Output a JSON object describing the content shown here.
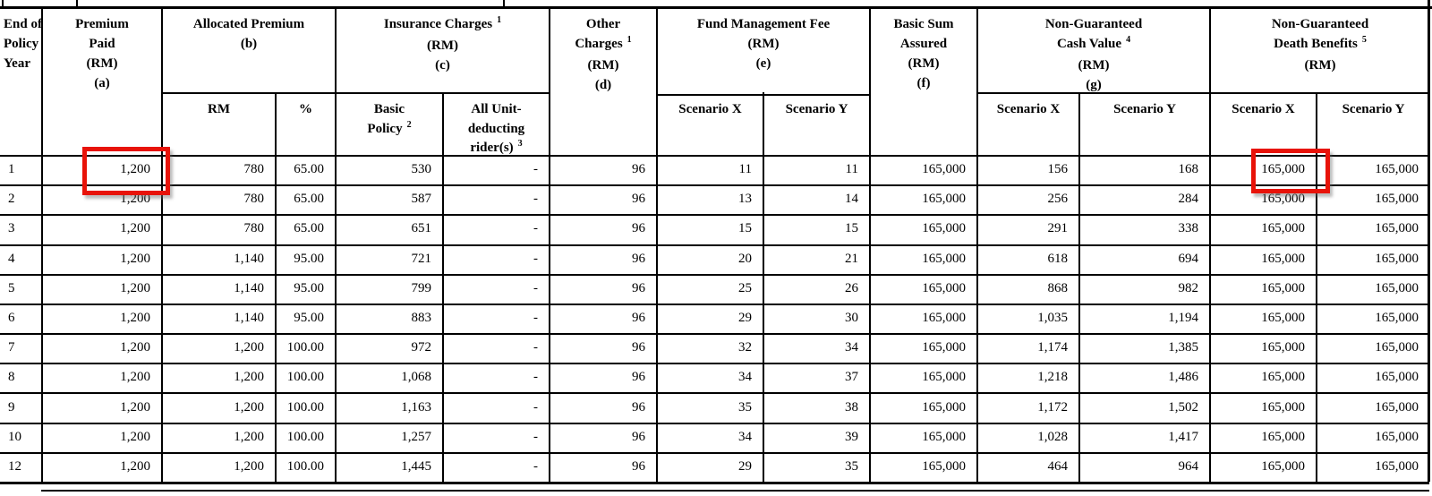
{
  "document": {
    "type": "insurance-benefit-illustration-table",
    "currency_note": "RM"
  },
  "colors": {
    "highlight_red": "#e81309",
    "grid": "#000000",
    "background": "#ffffff"
  },
  "header": {
    "policy_year": {
      "lines": [
        {
          "t": "End of"
        },
        {
          "t": "Policy"
        },
        {
          "t": "Year"
        }
      ]
    },
    "premium_paid": {
      "lines": [
        {
          "t": "Premium"
        },
        {
          "t": "Paid"
        },
        {
          "t": "(RM)"
        },
        {
          "t": "(a)"
        }
      ]
    },
    "allocated": {
      "lines": [
        {
          "t": "Allocated Premium"
        },
        {
          "t": "(b)"
        }
      ]
    },
    "insurance": {
      "lines": [
        {
          "t": "Insurance Charges",
          "s": "1"
        },
        {
          "t": "(RM)"
        },
        {
          "t": "(c)"
        }
      ]
    },
    "other": {
      "lines": [
        {
          "t": "Other"
        },
        {
          "t": "Charges",
          "s": "1"
        },
        {
          "t": "(RM)"
        },
        {
          "t": "(d)"
        }
      ]
    },
    "fmf": {
      "lines": [
        {
          "t": "Fund Management Fee"
        },
        {
          "t": "(RM)"
        },
        {
          "t": "(e)"
        }
      ]
    },
    "bsa": {
      "lines": [
        {
          "t": "Basic Sum"
        },
        {
          "t": "Assured"
        },
        {
          "t": "(RM)"
        },
        {
          "t": "(f)"
        }
      ]
    },
    "ngcv": {
      "lines": [
        {
          "t": "Non-Guaranteed"
        },
        {
          "t": "Cash Value",
          "s": "4"
        },
        {
          "t": "(RM)"
        },
        {
          "t": "(g)"
        }
      ]
    },
    "ngdb": {
      "lines": [
        {
          "t": "Non-Guaranteed"
        },
        {
          "t": "Death Benefits",
          "s": "5"
        },
        {
          "t": "(RM)"
        }
      ]
    }
  },
  "subheader": {
    "alloc_rm": {
      "lines": [
        {
          "t": "RM"
        }
      ]
    },
    "alloc_pct": {
      "lines": [
        {
          "t": "%"
        }
      ]
    },
    "basic_policy": {
      "lines": [
        {
          "t": "Basic"
        },
        {
          "t": "Policy",
          "s": "2"
        }
      ]
    },
    "riders": {
      "lines": [
        {
          "t": "All Unit-"
        },
        {
          "t": "deducting"
        },
        {
          "t": "rider(s)",
          "s": "3"
        }
      ]
    },
    "fmf_x": {
      "lines": [
        {
          "t": "Scenario X"
        }
      ]
    },
    "fmf_y": {
      "lines": [
        {
          "t": "Scenario Y"
        }
      ]
    },
    "ngcv_x": {
      "lines": [
        {
          "t": "Scenario X"
        }
      ]
    },
    "ngcv_y": {
      "lines": [
        {
          "t": "Scenario Y"
        }
      ]
    },
    "ngdb_x": {
      "lines": [
        {
          "t": "Scenario X"
        }
      ]
    },
    "ngdb_y": {
      "lines": [
        {
          "t": "Scenario Y"
        }
      ]
    }
  },
  "rows": [
    {
      "year": "1",
      "cells": [
        "1,200",
        "780",
        "65.00",
        "530",
        "-",
        "96",
        "11",
        "11",
        "165,000",
        "156",
        "168",
        "165,000",
        "165,000"
      ]
    },
    {
      "year": "2",
      "cells": [
        "1,200",
        "780",
        "65.00",
        "587",
        "-",
        "96",
        "13",
        "14",
        "165,000",
        "256",
        "284",
        "165,000",
        "165,000"
      ]
    },
    {
      "year": "3",
      "cells": [
        "1,200",
        "780",
        "65.00",
        "651",
        "-",
        "96",
        "15",
        "15",
        "165,000",
        "291",
        "338",
        "165,000",
        "165,000"
      ]
    },
    {
      "year": "4",
      "cells": [
        "1,200",
        "1,140",
        "95.00",
        "721",
        "-",
        "96",
        "20",
        "21",
        "165,000",
        "618",
        "694",
        "165,000",
        "165,000"
      ]
    },
    {
      "year": "5",
      "cells": [
        "1,200",
        "1,140",
        "95.00",
        "799",
        "-",
        "96",
        "25",
        "26",
        "165,000",
        "868",
        "982",
        "165,000",
        "165,000"
      ]
    },
    {
      "year": "6",
      "cells": [
        "1,200",
        "1,140",
        "95.00",
        "883",
        "-",
        "96",
        "29",
        "30",
        "165,000",
        "1,035",
        "1,194",
        "165,000",
        "165,000"
      ]
    },
    {
      "year": "7",
      "cells": [
        "1,200",
        "1,200",
        "100.00",
        "972",
        "-",
        "96",
        "32",
        "34",
        "165,000",
        "1,174",
        "1,385",
        "165,000",
        "165,000"
      ]
    },
    {
      "year": "8",
      "cells": [
        "1,200",
        "1,200",
        "100.00",
        "1,068",
        "-",
        "96",
        "34",
        "37",
        "165,000",
        "1,218",
        "1,486",
        "165,000",
        "165,000"
      ]
    },
    {
      "year": "9",
      "cells": [
        "1,200",
        "1,200",
        "100.00",
        "1,163",
        "-",
        "96",
        "35",
        "38",
        "165,000",
        "1,172",
        "1,502",
        "165,000",
        "165,000"
      ]
    },
    {
      "year": "10",
      "cells": [
        "1,200",
        "1,200",
        "100.00",
        "1,257",
        "-",
        "96",
        "34",
        "39",
        "165,000",
        "1,028",
        "1,417",
        "165,000",
        "165,000"
      ]
    },
    {
      "year": "12",
      "cells": [
        "1,200",
        "1,200",
        "100.00",
        "1,445",
        "-",
        "96",
        "29",
        "35",
        "165,000",
        "464",
        "964",
        "165,000",
        "165,000"
      ]
    }
  ],
  "highlights": [
    {
      "id": "premium-paid-year-1",
      "value": "1,200"
    },
    {
      "id": "death-benefits-scenario-x-year-1",
      "value": "165,000"
    }
  ]
}
